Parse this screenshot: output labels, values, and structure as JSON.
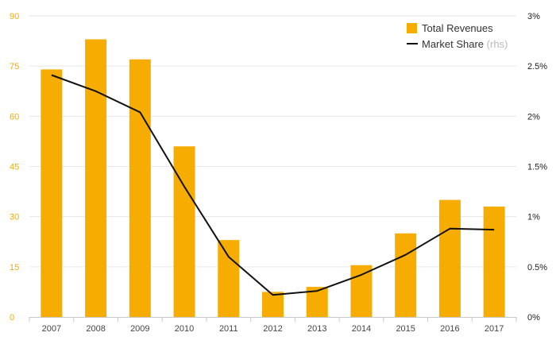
{
  "chart_data": {
    "type": "bar",
    "categories": [
      "2007",
      "2008",
      "2009",
      "2010",
      "2011",
      "2012",
      "2013",
      "2014",
      "2015",
      "2016",
      "2017"
    ],
    "series": [
      {
        "name": "Total Revenues",
        "type": "bar",
        "axis": "left",
        "color": "#f6ac00",
        "values": [
          74,
          83,
          77,
          51,
          23,
          7.5,
          9,
          15.5,
          25,
          35,
          33
        ]
      },
      {
        "name": "Market Share",
        "name_suffix": "(rhs)",
        "type": "line",
        "axis": "right",
        "color": "#111111",
        "values": [
          2.41,
          2.25,
          2.04,
          1.3,
          0.6,
          0.22,
          0.26,
          0.42,
          0.62,
          0.88,
          0.87
        ]
      }
    ],
    "y_left": {
      "min": 0,
      "max": 90,
      "ticks": [
        "0",
        "15",
        "30",
        "45",
        "60",
        "75",
        "90"
      ],
      "color": "#f6ac00"
    },
    "y_right": {
      "min": 0,
      "max": 3,
      "ticks": [
        "0%",
        "0.5%",
        "1%",
        "1.5%",
        "2%",
        "2.5%",
        "3%"
      ]
    },
    "grid": true,
    "legend_position": "top-right",
    "title": "",
    "xlabel": "",
    "ylabel": ""
  }
}
